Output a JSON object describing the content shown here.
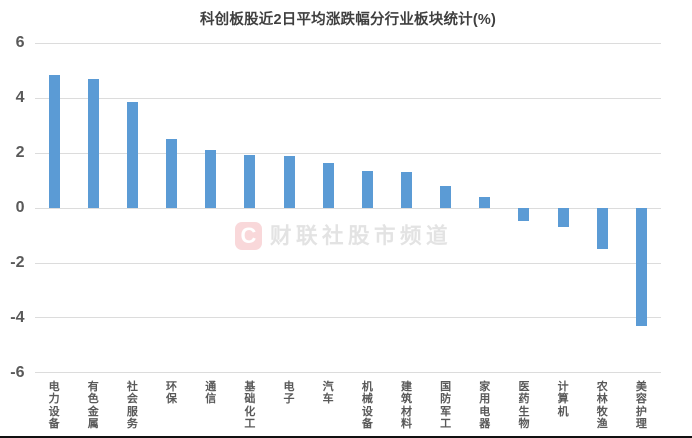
{
  "page": {
    "background": "#ffffff"
  },
  "chart_data": {
    "type": "bar",
    "title": "科创板股近2日平均涨跌幅分行业板块统计(%)",
    "categories": [
      "电力设备",
      "有色金属",
      "社会服务",
      "环保",
      "通信",
      "基础化工",
      "电子",
      "汽车",
      "机械设备",
      "建筑材料",
      "国防军工",
      "家用电器",
      "医药生物",
      "计算机",
      "农林牧渔",
      "美容护理"
    ],
    "values": [
      4.85,
      4.72,
      3.88,
      2.52,
      2.1,
      1.95,
      1.88,
      1.66,
      1.34,
      1.33,
      0.79,
      0.4,
      -0.47,
      -0.68,
      -1.5,
      -4.3
    ],
    "xlabel": "",
    "ylabel": "",
    "ylim": [
      -6,
      6
    ],
    "yticks": [
      6,
      4,
      2,
      0,
      -2,
      -4,
      -6
    ],
    "grid": true,
    "legend": "none",
    "bar_color": "#5b9bd5",
    "gridline_color": "#dcdcdc",
    "title_color": "#3f3f3f",
    "axis_label_color": "#595959"
  },
  "watermark": {
    "logo_letter": "C",
    "logo_bg_color": "#f9d8da",
    "logo_letter_color": "#ffffff",
    "text": "财联社股市频道",
    "text_color": "#e3e3e3"
  },
  "divider": {
    "color": "#111111"
  }
}
